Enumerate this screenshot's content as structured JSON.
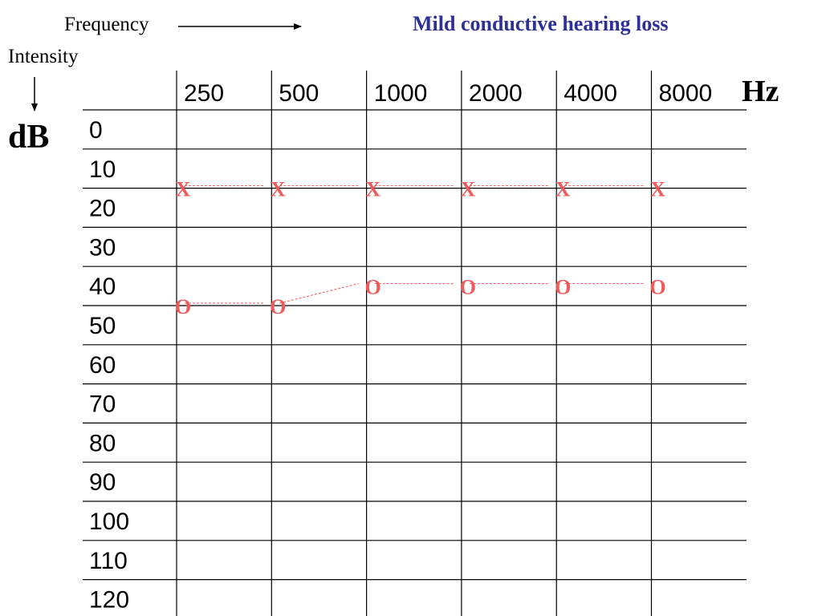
{
  "title": "Mild conductive hearing loss",
  "frequency_label": "Frequency",
  "intensity_label": "Intensity",
  "unit_x": "Hz",
  "unit_y": "dB",
  "colors": {
    "title": "#2e3192",
    "marker": "#f05a5a",
    "grid": "#000000",
    "text": "#000000"
  },
  "chart_data": {
    "type": "line",
    "title": "Mild conductive hearing loss",
    "xlabel": "Frequency",
    "ylabel": "Intensity",
    "x_unit": "Hz",
    "y_unit": "dB",
    "categories": [
      "250",
      "500",
      "1000",
      "2000",
      "4000",
      "8000"
    ],
    "y_ticks": [
      "0",
      "10",
      "20",
      "30",
      "40",
      "50",
      "60",
      "70",
      "80",
      "90",
      "100",
      "110",
      "120"
    ],
    "ylim": [
      0,
      120
    ],
    "y_inverted": true,
    "grid": true,
    "series": [
      {
        "marker": "X",
        "values": [
          20,
          20,
          20,
          20,
          20,
          20
        ]
      },
      {
        "marker": "O",
        "values": [
          50,
          50,
          45,
          45,
          45,
          45
        ]
      }
    ],
    "series_connectors": [
      "",
      "--------"
    ]
  }
}
